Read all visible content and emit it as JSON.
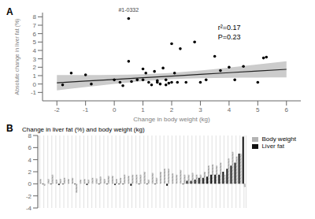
{
  "chart_data": [
    {
      "type": "scatter",
      "title": "A",
      "xlabel": "Change in body weight (kg)",
      "ylabel": "Absolute change in liver fat (%)",
      "x": [
        -1.8,
        -1.5,
        -1.0,
        -0.8,
        0.0,
        0.2,
        0.3,
        0.5,
        0.6,
        0.8,
        1.0,
        1.0,
        1.1,
        1.2,
        1.3,
        1.4,
        1.5,
        1.5,
        1.6,
        1.7,
        1.8,
        1.8,
        1.9,
        2.0,
        2.0,
        2.1,
        2.2,
        2.3,
        2.5,
        2.8,
        3.0,
        3.2,
        3.5,
        3.7,
        4.0,
        4.2,
        4.5,
        5.0,
        5.2,
        5.3
      ],
      "values": [
        -0.1,
        1.3,
        1.1,
        0.0,
        0.5,
        0.2,
        -0.2,
        2.7,
        0.3,
        0.5,
        0.5,
        1.8,
        1.3,
        0.2,
        -0.1,
        1.5,
        0.4,
        0.2,
        0.0,
        1.9,
        -0.1,
        0.5,
        0.1,
        0.2,
        4.8,
        1.3,
        0.2,
        4.2,
        0.2,
        5.0,
        0.2,
        0.5,
        3.3,
        1.6,
        2.0,
        0.5,
        2.1,
        0.2,
        3.1,
        3.2
      ],
      "color": "#000000",
      "outlier": {
        "x": 0.5,
        "y": 7.8,
        "label": "#1-0332"
      },
      "series": [
        {
          "type": "area",
          "color": "#cccccc",
          "x": [
            -2,
            -1,
            0,
            1,
            2,
            3,
            4,
            5,
            6
          ],
          "lower": [
            -0.76,
            -0.37,
            0.01,
            0.34,
            0.58,
            0.7,
            0.75,
            0.77,
            0.78
          ],
          "upper": [
            1.06,
            1.07,
            1.09,
            1.16,
            1.32,
            1.6,
            1.95,
            2.33,
            2.72
          ]
        },
        {
          "type": "line",
          "color": "#222222",
          "x": [
            -2,
            -1,
            0,
            1,
            2,
            3,
            4,
            5,
            6
          ],
          "values": [
            0.15,
            0.35,
            0.55,
            0.75,
            0.95,
            1.15,
            1.35,
            1.55,
            1.75
          ]
        }
      ],
      "annotation": "r²=0.17\nP=0.23",
      "xlim": [
        -2.5,
        6.5
      ],
      "xticks": [
        -2,
        -1,
        0,
        1,
        2,
        3,
        4,
        5,
        6
      ],
      "ylim": [
        -2.0,
        8.5
      ],
      "yticks": [
        -1,
        0,
        1,
        2,
        3,
        4,
        5,
        6,
        7,
        8
      ]
    },
    {
      "type": "bar",
      "title": "B",
      "ylabel": "Change in liver fat (%) and body weight (kg)",
      "categories": [
        null,
        null,
        null,
        null,
        null,
        null,
        null,
        null,
        null,
        null,
        null,
        null,
        null,
        null,
        null,
        null,
        null,
        null,
        null,
        null,
        null,
        null,
        null,
        null,
        null,
        null,
        null,
        null,
        null,
        null,
        null,
        null,
        null,
        null,
        null,
        null,
        null,
        null,
        null,
        null,
        null,
        null,
        null,
        null,
        null,
        null,
        null,
        null,
        null,
        null,
        null,
        null
      ],
      "series": [
        {
          "name": "Liver fat",
          "color": "#111111",
          "values": [
            0.0,
            -0.1,
            0.0,
            -0.1,
            0.0,
            -0.2,
            -0.1,
            0.0,
            0.0,
            -0.1,
            0.0,
            0.0,
            -0.2,
            0.0,
            0.0,
            -0.1,
            0.0,
            -0.1,
            0.0,
            -0.2,
            -0.1,
            -0.1,
            0.0,
            -0.3,
            0.0,
            -0.1,
            0.0,
            -0.1,
            0.0,
            -0.1,
            0.0,
            0.0,
            -0.3,
            0.0,
            0.0,
            0.0,
            -0.1,
            0.5,
            0.5,
            0.7,
            1.0,
            1.0,
            1.2,
            1.5,
            1.5,
            1.5,
            2.0,
            2.5,
            3.0,
            3.5,
            5.0,
            7.8
          ]
        },
        {
          "name": "Body weight",
          "color": "#bbbbbb",
          "values": [
            0.8,
            -0.3,
            0.8,
            1.5,
            0.7,
            0.8,
            1.0,
            0.8,
            1.0,
            -1.5,
            0.7,
            0.8,
            0.7,
            1.0,
            0.9,
            1.2,
            0.8,
            1.3,
            1.3,
            0.8,
            1.0,
            1.5,
            1.3,
            1.5,
            1.5,
            1.5,
            2.0,
            0.7,
            1.8,
            1.0,
            2.0,
            2.5,
            2.5,
            1.7,
            1.5,
            2.3,
            1.5,
            1.5,
            1.8,
            1.5,
            1.5,
            2.0,
            3.0,
            3.2,
            3.0,
            3.5,
            1.5,
            4.2,
            5.3,
            4.5,
            5.0,
            -0.5
          ]
        }
      ],
      "ylim": [
        -4,
        8
      ],
      "yticks": [
        -4,
        -2,
        0,
        2,
        4,
        6,
        8
      ],
      "grid": "x",
      "legend": "right"
    }
  ]
}
